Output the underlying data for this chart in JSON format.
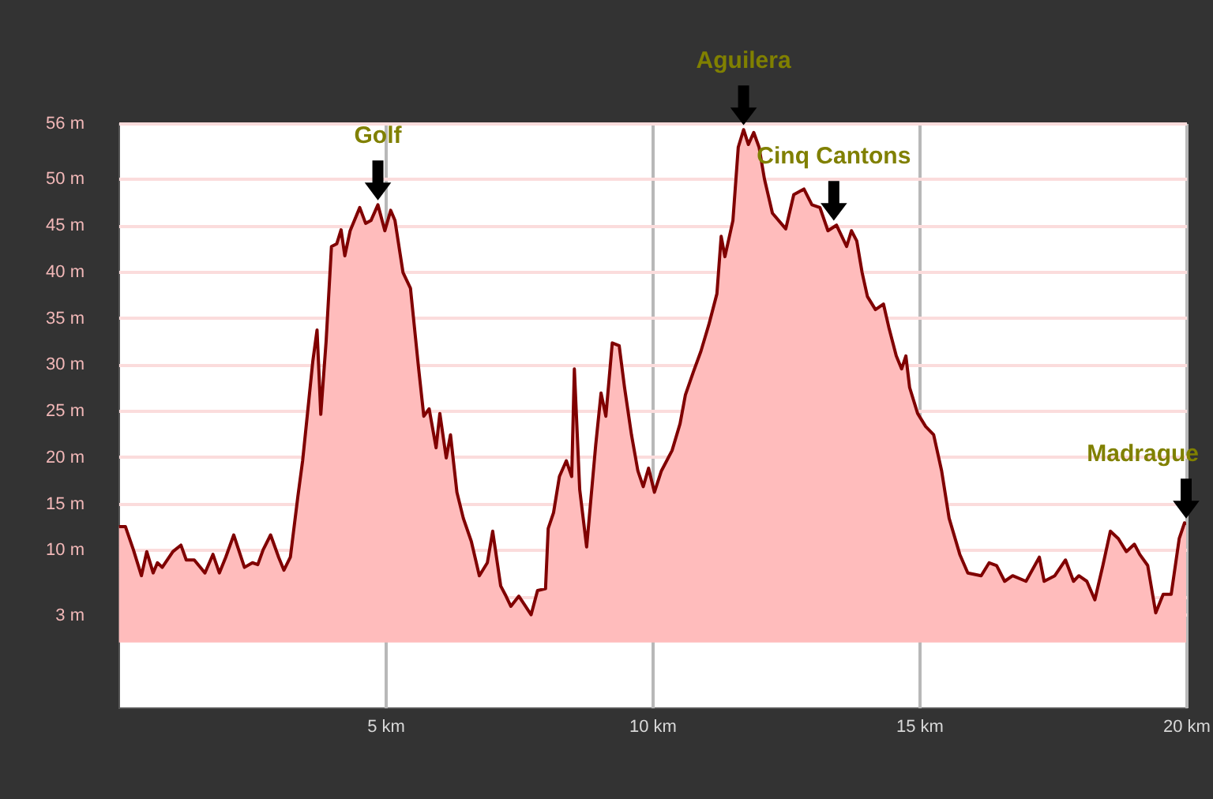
{
  "chart_data": {
    "type": "area",
    "x": [
      0.01,
      0.13,
      0.28,
      0.43,
      0.53,
      0.65,
      0.73,
      0.82,
      1.02,
      1.17,
      1.27,
      1.42,
      1.62,
      1.77,
      1.89,
      2.01,
      2.16,
      2.36,
      2.51,
      2.61,
      2.71,
      2.85,
      3.0,
      3.1,
      3.22,
      3.36,
      3.45,
      3.55,
      3.64,
      3.72,
      3.79,
      3.89,
      3.99,
      4.09,
      4.17,
      4.24,
      4.34,
      4.52,
      4.63,
      4.73,
      4.86,
      4.99,
      5.1,
      5.18,
      5.33,
      5.47,
      5.62,
      5.72,
      5.82,
      5.95,
      6.02,
      6.14,
      6.22,
      6.34,
      6.46,
      6.61,
      6.76,
      6.91,
      7.01,
      7.16,
      7.26,
      7.35,
      7.5,
      7.73,
      7.85,
      8.0,
      8.05,
      8.15,
      8.26,
      8.39,
      8.49,
      8.54,
      8.64,
      8.77,
      8.94,
      9.04,
      9.13,
      9.25,
      9.38,
      9.48,
      9.61,
      9.73,
      9.83,
      9.93,
      10.04,
      10.17,
      10.37,
      10.52,
      10.62,
      10.77,
      10.91,
      11.06,
      11.21,
      11.29,
      11.36,
      11.51,
      11.61,
      11.71,
      11.8,
      11.9,
      12.0,
      12.1,
      12.25,
      12.5,
      12.65,
      12.84,
      12.99,
      13.14,
      13.29,
      13.45,
      13.64,
      13.73,
      13.83,
      13.93,
      14.03,
      14.18,
      14.33,
      14.43,
      14.57,
      14.67,
      14.75,
      14.82,
      14.97,
      15.12,
      15.27,
      15.42,
      15.56,
      15.76,
      15.91,
      16.16,
      16.31,
      16.45,
      16.6,
      16.75,
      17.0,
      17.25,
      17.34,
      17.54,
      17.74,
      17.89,
      17.99,
      18.14,
      18.29,
      18.44,
      18.58,
      18.73,
      18.88,
      19.03,
      19.13,
      19.28,
      19.43,
      19.57,
      19.72,
      19.87,
      19.97,
      20.0
    ],
    "series": [
      {
        "color": "#800000",
        "values": [
          12.5,
          12.5,
          10.0,
          7.2,
          9.8,
          7.5,
          8.6,
          8.1,
          9.8,
          10.5,
          8.9,
          8.9,
          7.5,
          9.5,
          7.5,
          9.2,
          11.6,
          8.1,
          8.6,
          8.4,
          10.0,
          11.6,
          9.2,
          7.8,
          9.2,
          15.7,
          19.6,
          25.2,
          30.3,
          33.7,
          24.6,
          32.5,
          42.7,
          43.0,
          44.5,
          41.7,
          44.4,
          46.9,
          45.2,
          45.5,
          47.2,
          44.4,
          46.6,
          45.5,
          39.9,
          38.2,
          29.7,
          24.4,
          25.2,
          21.0,
          24.7,
          19.9,
          22.4,
          16.2,
          13.4,
          10.9,
          7.2,
          8.6,
          12.0,
          6.1,
          5.0,
          3.9,
          5.0,
          3.0,
          5.6,
          5.8,
          12.3,
          14.0,
          17.9,
          19.6,
          17.9,
          29.5,
          16.5,
          10.3,
          21.3,
          26.9,
          24.4,
          32.3,
          32.0,
          27.5,
          22.4,
          18.5,
          16.8,
          18.8,
          16.2,
          18.5,
          20.7,
          23.6,
          26.7,
          29.2,
          31.4,
          34.3,
          37.6,
          43.8,
          41.6,
          45.5,
          53.4,
          55.3,
          53.7,
          55.0,
          53.4,
          50.0,
          46.3,
          44.6,
          48.3,
          48.9,
          47.2,
          46.9,
          44.4,
          45.0,
          42.7,
          44.4,
          43.3,
          39.9,
          37.3,
          35.9,
          36.5,
          34.0,
          30.9,
          29.5,
          30.9,
          27.5,
          24.7,
          23.3,
          22.4,
          18.5,
          13.4,
          9.5,
          7.5,
          7.2,
          8.6,
          8.3,
          6.6,
          7.2,
          6.6,
          9.2,
          6.6,
          7.2,
          8.9,
          6.6,
          7.2,
          6.6,
          4.6,
          8.3,
          12.0,
          11.2,
          9.8,
          10.6,
          9.5,
          8.3,
          3.2,
          5.2,
          5.2,
          11.2,
          12.9,
          12.7
        ]
      }
    ],
    "xlim": [
      0,
      20
    ],
    "xticks": [
      {
        "value": 5,
        "label": "5 km"
      },
      {
        "value": 10,
        "label": "10 km"
      },
      {
        "value": 15,
        "label": "15 km"
      },
      {
        "value": 20,
        "label": "20 km"
      }
    ],
    "ylim": [
      -7,
      56
    ],
    "yticks": [
      {
        "value": 3,
        "label": "3 m"
      },
      {
        "value": 5,
        "label": null
      },
      {
        "value": 10,
        "label": "10 m"
      },
      {
        "value": 15,
        "label": "15 m"
      },
      {
        "value": 20,
        "label": "20 m"
      },
      {
        "value": 25,
        "label": "25 m"
      },
      {
        "value": 30,
        "label": "30 m"
      },
      {
        "value": 35,
        "label": "35 m"
      },
      {
        "value": 40,
        "label": "40 m"
      },
      {
        "value": 45,
        "label": "45 m"
      },
      {
        "value": 50,
        "label": "50 m"
      },
      {
        "value": 56,
        "label": "56 m"
      }
    ],
    "grid": true,
    "annotations": [
      {
        "text": "Golf",
        "x": 4.86,
        "y": 47.2
      },
      {
        "text": "Aguilera",
        "x": 11.71,
        "y": 55.3
      },
      {
        "text": "Cinq Cantons",
        "x": 13.4,
        "y": 45.0
      },
      {
        "text": "Madrague",
        "x": 20.0,
        "y": 12.9
      }
    ]
  }
}
